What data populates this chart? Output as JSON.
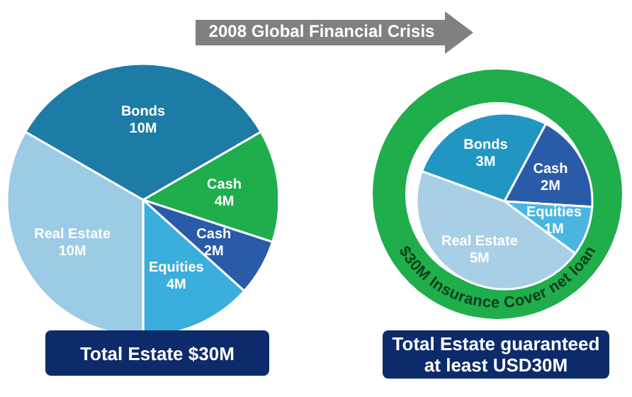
{
  "chart_data": [
    {
      "type": "pie",
      "categories": [
        "Bonds",
        "Cash",
        "Cash",
        "Equities",
        "Real Estate"
      ],
      "values": [
        10,
        4,
        2,
        4,
        10
      ],
      "colors": [
        "#1c7ca6",
        "#1fae4b",
        "#2a5ba8",
        "#3aaedc",
        "#9ccbe6"
      ],
      "value_labels": [
        "10M",
        "4M",
        "2M",
        "4M",
        "10M"
      ],
      "annotations": [
        "2008 Global Financial Crisis",
        "Total Estate $30M"
      ]
    },
    {
      "type": "pie",
      "categories": [
        "Bonds",
        "Cash",
        "Equities",
        "Real Estate"
      ],
      "values": [
        3,
        2,
        1,
        5
      ],
      "colors": [
        "#2296c2",
        "#2a5ba8",
        "#4ab6e0",
        "#a8cfe6"
      ],
      "value_labels": [
        "3M",
        "2M",
        "1M",
        "5M"
      ],
      "annotations": [
        "$30M Insurance Cover net loan",
        "Total Estate guaranteed at least USD30M"
      ]
    }
  ]
}
